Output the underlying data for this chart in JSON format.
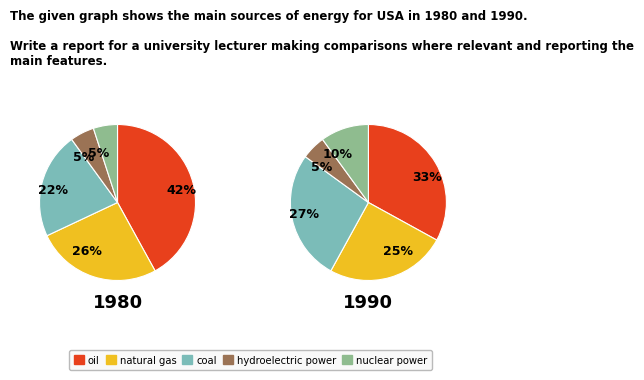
{
  "title_line1": "The given graph shows the main sources of energy for USA in 1980 and 1990.",
  "title_line2": "Write a report for a university lecturer making comparisons where relevant and reporting the\nmain features.",
  "pie1_label": "1980",
  "pie2_label": "1990",
  "categories": [
    "oil",
    "natural gas",
    "coal",
    "hydroelectric power",
    "nuclear power"
  ],
  "colors": [
    "#E8401C",
    "#F0C020",
    "#7BBCB8",
    "#9B7355",
    "#8FBC8F"
  ],
  "pie1_values": [
    42,
    26,
    22,
    5,
    5
  ],
  "pie2_values": [
    33,
    25,
    27,
    5,
    10
  ],
  "pie1_labels": [
    "42%",
    "26%",
    "22%",
    "5%",
    "5%"
  ],
  "pie2_labels": [
    "33%",
    "25%",
    "27%",
    "5%",
    "10%"
  ],
  "background_color": "#FFFFFF",
  "text_color": "#000000",
  "title_fontsize": 8.5,
  "label_fontsize": 9,
  "year_fontsize": 13
}
